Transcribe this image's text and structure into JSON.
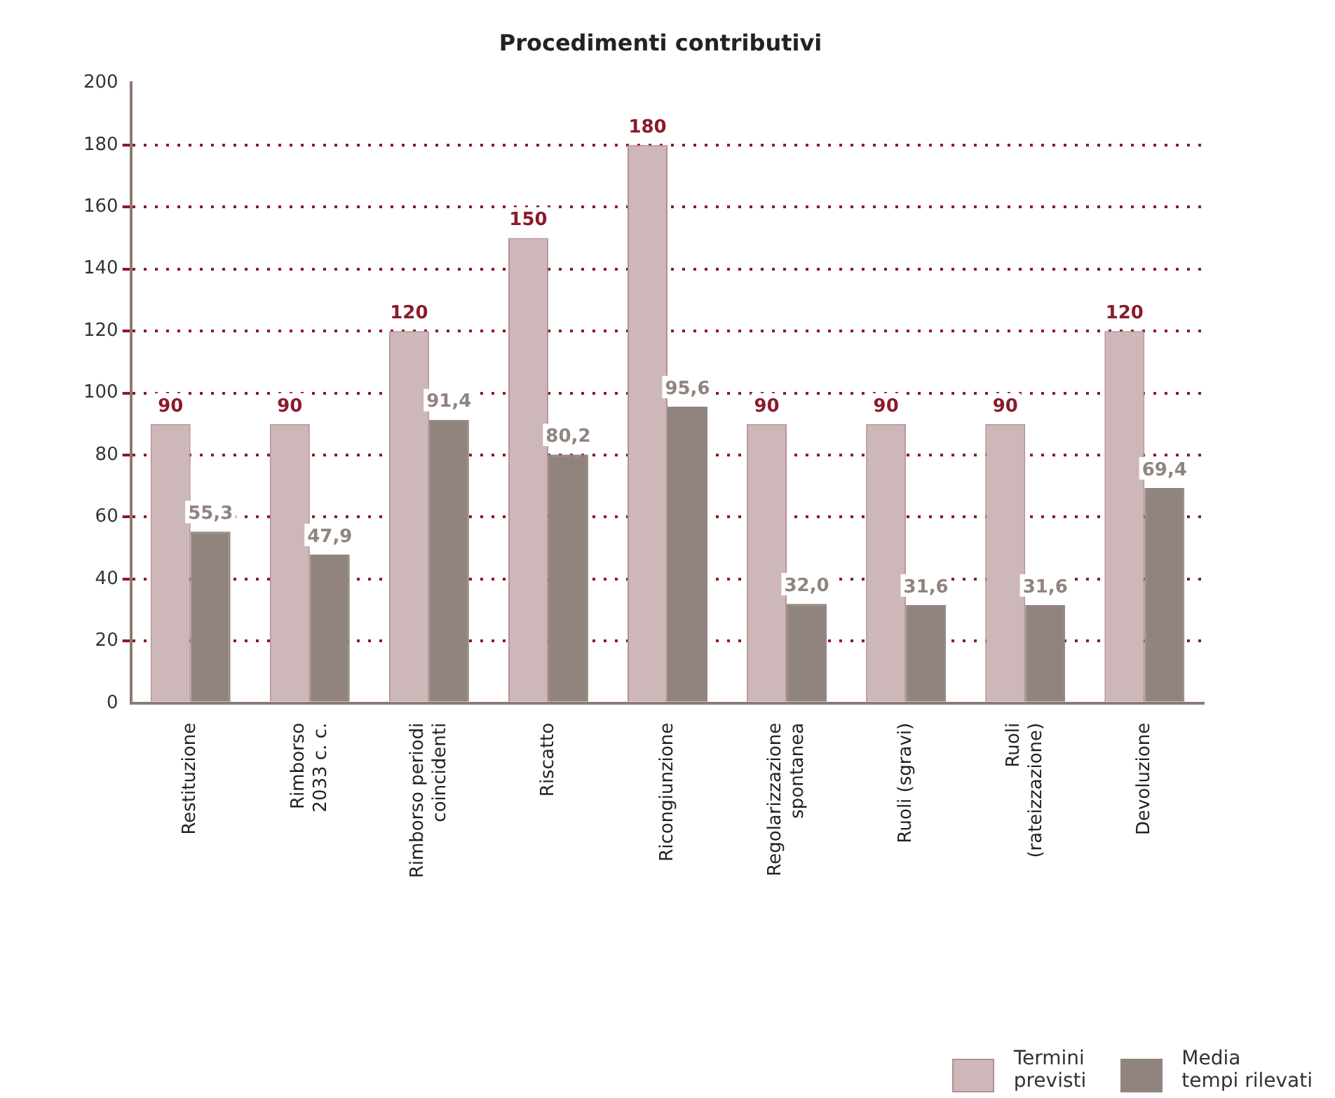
{
  "chart_data": {
    "type": "bar",
    "title": "Procedimenti contributivi",
    "categories": [
      "Restituzione",
      "Rimborso\n2033 c. c.",
      "Rimborso periodi\ncoincidenti",
      "Riscatto",
      "Ricongiunzione",
      "Regolarizzazione\nspontanea",
      "Ruoli (sgravi)",
      "Ruoli\n(rateizzazione)",
      "Devoluzione"
    ],
    "series": [
      {
        "name": "Termini\nprevisti",
        "color": "#cdb7b8",
        "values": [
          90,
          90,
          120,
          150,
          180,
          90,
          90,
          90,
          120
        ],
        "value_labels": [
          "90",
          "90",
          "120",
          "150",
          "180",
          "90",
          "90",
          "90",
          "120"
        ]
      },
      {
        "name": "Media\ntempi rilevati",
        "color": "#91847f",
        "values": [
          55.3,
          47.9,
          91.4,
          80.2,
          95.6,
          32.0,
          31.6,
          31.6,
          69.4
        ],
        "value_labels": [
          "55,3",
          "47,9",
          "91,4",
          "80,2",
          "95,6",
          "32,0",
          "31,6",
          "31,6",
          "69,4"
        ]
      }
    ],
    "ylim": [
      0,
      200
    ],
    "yticks": [
      0,
      20,
      40,
      60,
      80,
      100,
      120,
      140,
      160,
      180,
      200
    ],
    "grid": "y",
    "legend": "bottom right"
  }
}
